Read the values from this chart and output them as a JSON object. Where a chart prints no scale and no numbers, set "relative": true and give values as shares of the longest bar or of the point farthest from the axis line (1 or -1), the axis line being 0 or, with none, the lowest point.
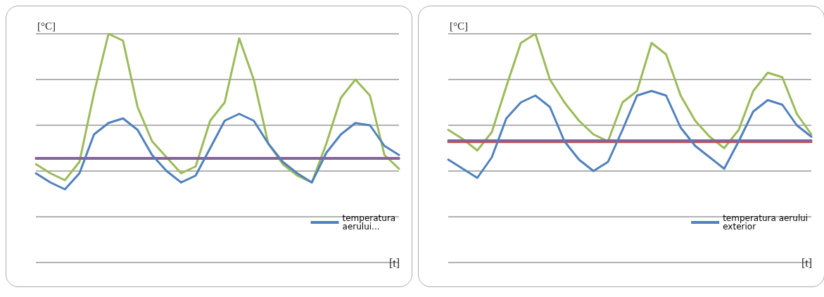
{
  "chart_data": [
    {
      "type": "line",
      "relative": true,
      "ylabel": "[°C]",
      "xlabel": "[t]",
      "categories": [
        null,
        null,
        null,
        null,
        null,
        null,
        null,
        null,
        null,
        null,
        null,
        null,
        null,
        null,
        null,
        null,
        null,
        null,
        null,
        null,
        null,
        null,
        null,
        null,
        null,
        null
      ],
      "grid": "y",
      "legend": "bottom right",
      "marker": "none",
      "line_style": "solid",
      "series": [
        {
          "color": "#9bbb59",
          "values": [
            0.43,
            0.39,
            0.36,
            0.44,
            0.74,
            1.0,
            0.97,
            0.68,
            0.53,
            0.46,
            0.39,
            0.42,
            0.62,
            0.7,
            0.98,
            0.8,
            0.52,
            0.43,
            0.38,
            0.35,
            0.52,
            0.72,
            0.8,
            0.73,
            0.47,
            0.41
          ]
        },
        {
          "color": "#c0504d",
          "values": [
            0.454,
            0.454,
            0.454,
            0.454,
            0.454,
            0.454,
            0.454,
            0.454,
            0.454,
            0.454,
            0.454,
            0.454,
            0.454,
            0.454,
            0.454,
            0.454,
            0.454,
            0.454,
            0.454,
            0.454,
            0.454,
            0.454,
            0.454,
            0.454,
            0.454,
            0.454
          ]
        },
        {
          "color": "#8064a2",
          "values": [
            0.457,
            0.457,
            0.457,
            0.457,
            0.457,
            0.457,
            0.457,
            0.457,
            0.457,
            0.457,
            0.457,
            0.457,
            0.457,
            0.457,
            0.457,
            0.457,
            0.457,
            0.457,
            0.457,
            0.457,
            0.457,
            0.457,
            0.457,
            0.457,
            0.457,
            0.457
          ]
        },
        {
          "name": "temperatura aerului...",
          "color": "#4f81bd",
          "values": [
            0.39,
            0.35,
            0.32,
            0.39,
            0.56,
            0.61,
            0.63,
            0.58,
            0.47,
            0.4,
            0.35,
            0.38,
            0.5,
            0.62,
            0.65,
            0.62,
            0.52,
            0.44,
            0.39,
            0.35,
            0.48,
            0.56,
            0.61,
            0.6,
            0.51,
            0.47
          ]
        }
      ]
    },
    {
      "type": "line",
      "relative": true,
      "ylabel": "[°C]",
      "xlabel": "[t]",
      "categories": [
        null,
        null,
        null,
        null,
        null,
        null,
        null,
        null,
        null,
        null,
        null,
        null,
        null,
        null,
        null,
        null,
        null,
        null,
        null,
        null,
        null,
        null,
        null,
        null,
        null,
        null
      ],
      "grid": "y",
      "legend": "bottom right",
      "marker": "none",
      "line_style": "solid",
      "series": [
        {
          "color": "#9bbb59",
          "values": [
            0.58,
            0.54,
            0.49,
            0.57,
            0.77,
            0.96,
            1.0,
            0.8,
            0.7,
            0.62,
            0.56,
            0.53,
            0.7,
            0.75,
            0.96,
            0.91,
            0.73,
            0.62,
            0.55,
            0.5,
            0.58,
            0.75,
            0.83,
            0.81,
            0.65,
            0.56
          ]
        },
        {
          "color": "#c0504d",
          "values": [
            0.527,
            0.527,
            0.527,
            0.527,
            0.527,
            0.527,
            0.527,
            0.527,
            0.527,
            0.527,
            0.527,
            0.527,
            0.527,
            0.527,
            0.527,
            0.527,
            0.527,
            0.527,
            0.527,
            0.527,
            0.527,
            0.527,
            0.527,
            0.527,
            0.527,
            0.527
          ]
        },
        {
          "color": "#8064a2",
          "values": [
            0.534,
            0.534,
            0.534,
            0.534,
            0.534,
            0.534,
            0.534,
            0.534,
            0.534,
            0.534,
            0.534,
            0.534,
            0.534,
            0.534,
            0.534,
            0.534,
            0.534,
            0.534,
            0.534,
            0.534,
            0.534,
            0.534,
            0.534,
            0.534,
            0.534,
            0.534
          ]
        },
        {
          "name": "temperatura aerului exterior",
          "color": "#4f81bd",
          "values": [
            0.45,
            0.41,
            0.37,
            0.46,
            0.63,
            0.7,
            0.73,
            0.68,
            0.53,
            0.45,
            0.4,
            0.44,
            0.58,
            0.73,
            0.75,
            0.73,
            0.59,
            0.51,
            0.46,
            0.41,
            0.53,
            0.66,
            0.71,
            0.69,
            0.6,
            0.55
          ]
        }
      ]
    }
  ]
}
